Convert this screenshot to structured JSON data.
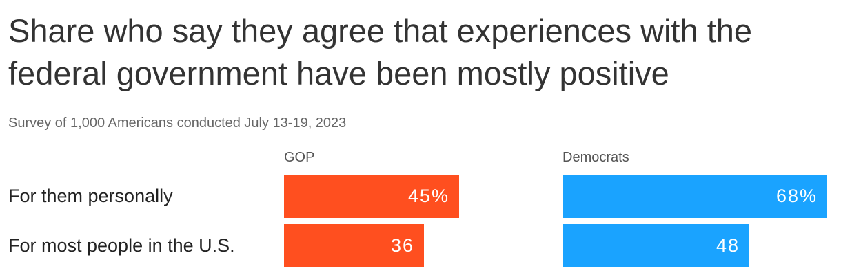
{
  "title": "Share who say they agree that experiences with the federal government have been mostly positive",
  "subtitle": "Survey of 1,000 Americans conducted July 13-19, 2023",
  "chart_data": {
    "type": "bar",
    "orientation": "horizontal",
    "categories": [
      "For them personally",
      "For most people in the U.S."
    ],
    "series": [
      {
        "name": "GOP",
        "values": [
          45,
          36
        ],
        "labels": [
          "45%",
          "36"
        ],
        "color": "#FF4F1F"
      },
      {
        "name": "Democrats",
        "values": [
          68,
          48
        ],
        "labels": [
          "68%",
          "48"
        ],
        "color": "#1AA3FF"
      }
    ],
    "xlim": [
      0,
      68
    ]
  }
}
